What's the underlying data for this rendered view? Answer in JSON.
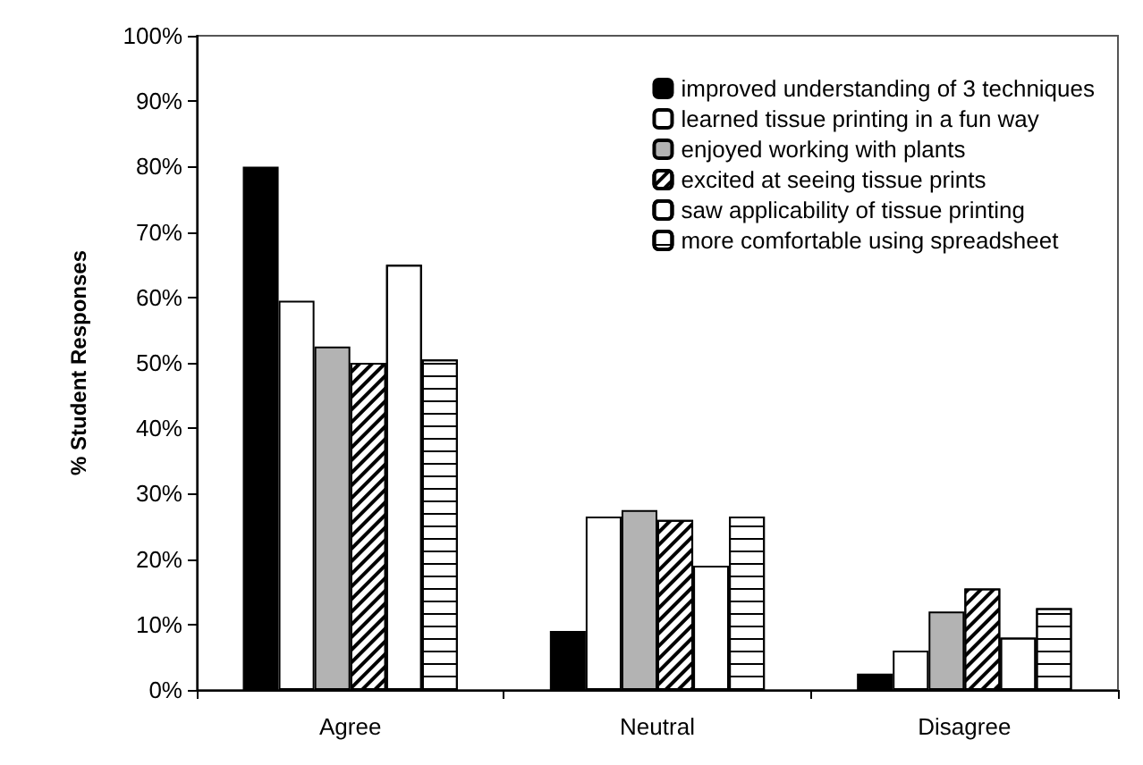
{
  "chart_data": {
    "type": "bar",
    "ylabel": "% Student Responses",
    "categories": [
      "Agree",
      "Neutral",
      "Disagree"
    ],
    "series": [
      {
        "name": "improved understanding of 3 techniques",
        "color": "#000000",
        "values": [
          80,
          9,
          2.5
        ]
      },
      {
        "name": "learned tissue printing in a fun way",
        "color": "#ffffff",
        "values": [
          59.5,
          26.5,
          6
        ]
      },
      {
        "name": "enjoyed working with plants",
        "color": "#b3b3b3",
        "values": [
          52.5,
          27.5,
          12
        ]
      },
      {
        "name": "excited at seeing tissue prints",
        "color": "#ffffff",
        "values": [
          50,
          26,
          15.5
        ]
      },
      {
        "name": "saw applicability of tissue printing",
        "color": "#ffffff",
        "values": [
          65,
          19,
          8
        ]
      },
      {
        "name": "more comfortable using spreadsheet",
        "color": "#ffffff",
        "values": [
          50.5,
          26.5,
          12.5
        ]
      }
    ],
    "ylim": [
      0,
      100
    ],
    "yticks": [
      {
        "value": 0,
        "label": "0%"
      },
      {
        "value": 10,
        "label": "10%"
      },
      {
        "value": 20,
        "label": "20%"
      },
      {
        "value": 30,
        "label": "30%"
      },
      {
        "value": 40,
        "label": "40%"
      },
      {
        "value": 50,
        "label": "50%"
      },
      {
        "value": 60,
        "label": "60%"
      },
      {
        "value": 70,
        "label": "70%"
      },
      {
        "value": 80,
        "label": "80%"
      },
      {
        "value": 90,
        "label": "90%"
      },
      {
        "value": 100,
        "label": "100%"
      }
    ],
    "grid": false,
    "legend": "top right"
  }
}
